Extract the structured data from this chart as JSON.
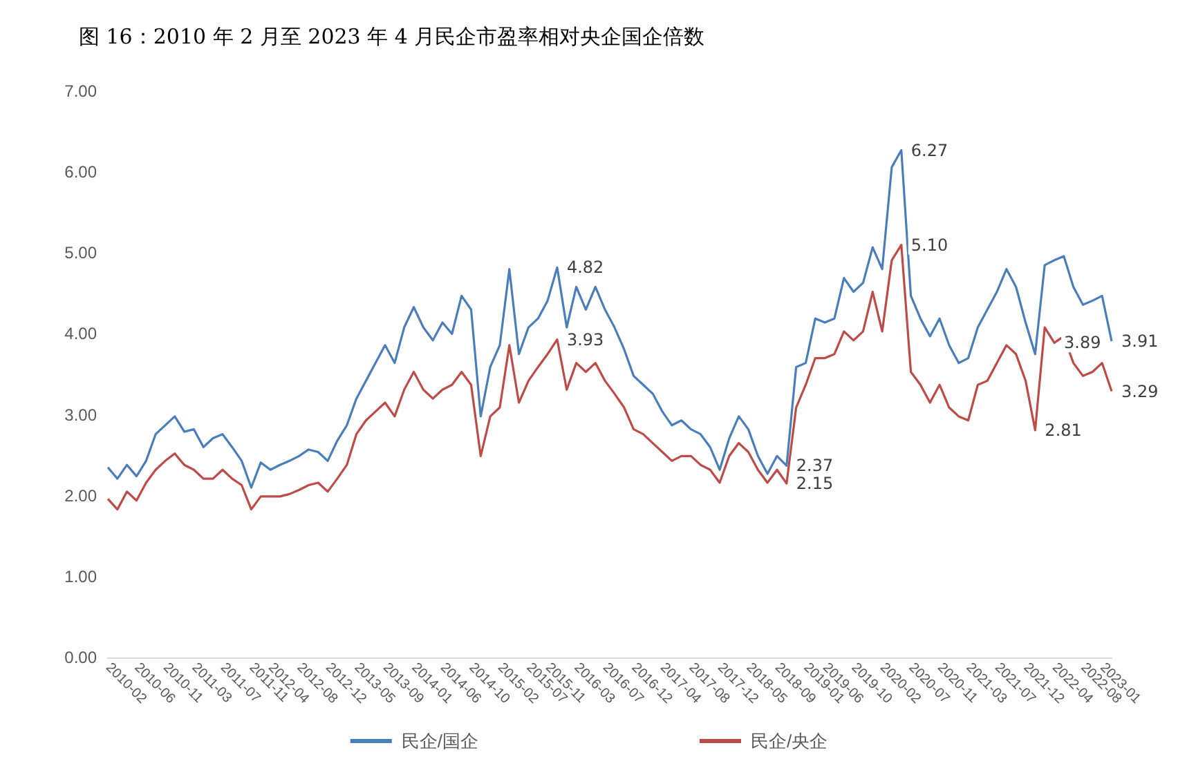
{
  "chart_data": {
    "type": "line",
    "title": "图 16：2010 年 2 月至 2023 年 4 月民企市盈率相对央企国企倍数",
    "categories": [
      "2010-02",
      null,
      null,
      "2010-06",
      null,
      null,
      "2010-11",
      null,
      null,
      "2011-03",
      null,
      null,
      "2011-07",
      null,
      null,
      "2011-11",
      null,
      "2012-04",
      null,
      null,
      "2012-08",
      null,
      null,
      "2012-12",
      null,
      null,
      "2013-05",
      null,
      null,
      "2013-09",
      null,
      null,
      "2014-01",
      null,
      null,
      "2014-06",
      null,
      null,
      "2014-10",
      null,
      null,
      "2015-02",
      null,
      null,
      "2015-07",
      null,
      "2015-11",
      null,
      null,
      "2016-03",
      null,
      null,
      "2016-07",
      null,
      null,
      "2016-12",
      null,
      null,
      "2017-04",
      null,
      null,
      "2017-08",
      null,
      null,
      "2017-12",
      null,
      null,
      "2018-05",
      null,
      null,
      "2018-09",
      null,
      null,
      "2019-01",
      null,
      "2019-06",
      null,
      null,
      "2019-10",
      null,
      null,
      "2020-02",
      null,
      null,
      "2020-07",
      null,
      null,
      "2020-11",
      null,
      null,
      "2021-03",
      null,
      null,
      "2021-07",
      null,
      null,
      "2021-12",
      null,
      null,
      "2022-04",
      null,
      null,
      "2022-08",
      null,
      "2023-01",
      null
    ],
    "series": [
      {
        "name": "民企/国企",
        "color": "#4a7ebb",
        "values": [
          2.35,
          2.21,
          2.38,
          2.24,
          2.43,
          2.76,
          2.87,
          2.98,
          2.79,
          2.82,
          2.6,
          2.71,
          2.76,
          2.6,
          2.43,
          2.1,
          2.41,
          2.32,
          2.38,
          2.43,
          2.49,
          2.57,
          2.54,
          2.43,
          2.68,
          2.87,
          3.2,
          3.42,
          3.64,
          3.86,
          3.64,
          4.08,
          4.33,
          4.08,
          3.92,
          4.14,
          4.0,
          4.47,
          4.3,
          2.98,
          3.59,
          3.86,
          4.8,
          3.75,
          4.08,
          4.19,
          4.41,
          4.82,
          4.08,
          4.58,
          4.3,
          4.58,
          4.3,
          4.08,
          3.81,
          3.48,
          3.37,
          3.26,
          3.04,
          2.87,
          2.93,
          2.82,
          2.76,
          2.6,
          2.32,
          2.71,
          2.98,
          2.82,
          2.49,
          2.27,
          2.49,
          2.37,
          3.59,
          3.64,
          4.19,
          4.14,
          4.19,
          4.69,
          4.52,
          4.63,
          5.07,
          4.8,
          6.06,
          6.27,
          4.47,
          4.19,
          3.97,
          4.19,
          3.86,
          3.64,
          3.7,
          4.08,
          4.3,
          4.52,
          4.8,
          4.58,
          4.14,
          3.75,
          4.85,
          4.91,
          4.96,
          4.58,
          4.36,
          4.41,
          4.47,
          3.91
        ],
        "value_labels": [
          null,
          null,
          null,
          null,
          null,
          null,
          null,
          null,
          null,
          null,
          null,
          null,
          null,
          null,
          null,
          null,
          null,
          null,
          null,
          null,
          null,
          null,
          null,
          null,
          null,
          null,
          null,
          null,
          null,
          null,
          null,
          null,
          null,
          null,
          null,
          null,
          null,
          null,
          null,
          null,
          null,
          null,
          null,
          null,
          null,
          null,
          null,
          "4.82",
          null,
          null,
          null,
          null,
          null,
          null,
          null,
          null,
          null,
          null,
          null,
          null,
          null,
          null,
          null,
          null,
          null,
          null,
          null,
          null,
          null,
          null,
          null,
          "2.37",
          null,
          null,
          null,
          null,
          null,
          null,
          null,
          null,
          null,
          null,
          null,
          "6.27",
          null,
          null,
          null,
          null,
          null,
          null,
          null,
          null,
          null,
          null,
          null,
          null,
          null,
          null,
          null,
          null,
          null,
          null,
          null,
          null,
          null,
          "3.91"
        ]
      },
      {
        "name": "民企/央企",
        "color": "#be4b48",
        "values": [
          1.96,
          1.83,
          2.05,
          1.94,
          2.16,
          2.32,
          2.43,
          2.52,
          2.38,
          2.32,
          2.21,
          2.21,
          2.32,
          2.21,
          2.13,
          1.83,
          1.99,
          1.99,
          1.99,
          2.02,
          2.07,
          2.13,
          2.16,
          2.05,
          2.21,
          2.38,
          2.76,
          2.93,
          3.04,
          3.15,
          2.98,
          3.31,
          3.53,
          3.31,
          3.2,
          3.31,
          3.37,
          3.53,
          3.37,
          2.49,
          2.98,
          3.09,
          3.86,
          3.15,
          3.42,
          3.59,
          3.75,
          3.93,
          3.31,
          3.64,
          3.53,
          3.64,
          3.42,
          3.26,
          3.09,
          2.82,
          2.76,
          2.65,
          2.54,
          2.43,
          2.49,
          2.49,
          2.38,
          2.32,
          2.16,
          2.49,
          2.65,
          2.54,
          2.32,
          2.16,
          2.32,
          2.15,
          3.09,
          3.37,
          3.7,
          3.7,
          3.75,
          4.03,
          3.92,
          4.03,
          4.52,
          4.03,
          4.91,
          5.1,
          3.53,
          3.37,
          3.15,
          3.37,
          3.09,
          2.98,
          2.93,
          3.37,
          3.42,
          3.64,
          3.86,
          3.75,
          3.42,
          2.81,
          4.08,
          3.89,
          3.97,
          3.64,
          3.48,
          3.53,
          3.64,
          3.29
        ],
        "value_labels": [
          null,
          null,
          null,
          null,
          null,
          null,
          null,
          null,
          null,
          null,
          null,
          null,
          null,
          null,
          null,
          null,
          null,
          null,
          null,
          null,
          null,
          null,
          null,
          null,
          null,
          null,
          null,
          null,
          null,
          null,
          null,
          null,
          null,
          null,
          null,
          null,
          null,
          null,
          null,
          null,
          null,
          null,
          null,
          null,
          null,
          null,
          null,
          "3.93",
          null,
          null,
          null,
          null,
          null,
          null,
          null,
          null,
          null,
          null,
          null,
          null,
          null,
          null,
          null,
          null,
          null,
          null,
          null,
          null,
          null,
          null,
          null,
          "2.15",
          null,
          null,
          null,
          null,
          null,
          null,
          null,
          null,
          null,
          null,
          null,
          "5.10",
          null,
          null,
          null,
          null,
          null,
          null,
          null,
          null,
          null,
          null,
          null,
          null,
          null,
          "2.81",
          null,
          "3.89",
          null,
          null,
          null,
          null,
          null,
          "3.29"
        ]
      }
    ],
    "ylim": [
      0,
      7
    ],
    "yticks": [
      {
        "value": 0,
        "label": "0.00"
      },
      {
        "value": 1,
        "label": "1.00"
      },
      {
        "value": 2,
        "label": "2.00"
      },
      {
        "value": 3,
        "label": "3.00"
      },
      {
        "value": 4,
        "label": "4.00"
      },
      {
        "value": 5,
        "label": "5.00"
      },
      {
        "value": 6,
        "label": "6.00"
      },
      {
        "value": 7,
        "label": "7.00"
      }
    ],
    "grid": false,
    "legend": "bottom",
    "marker": "none",
    "line_style": "solid"
  }
}
